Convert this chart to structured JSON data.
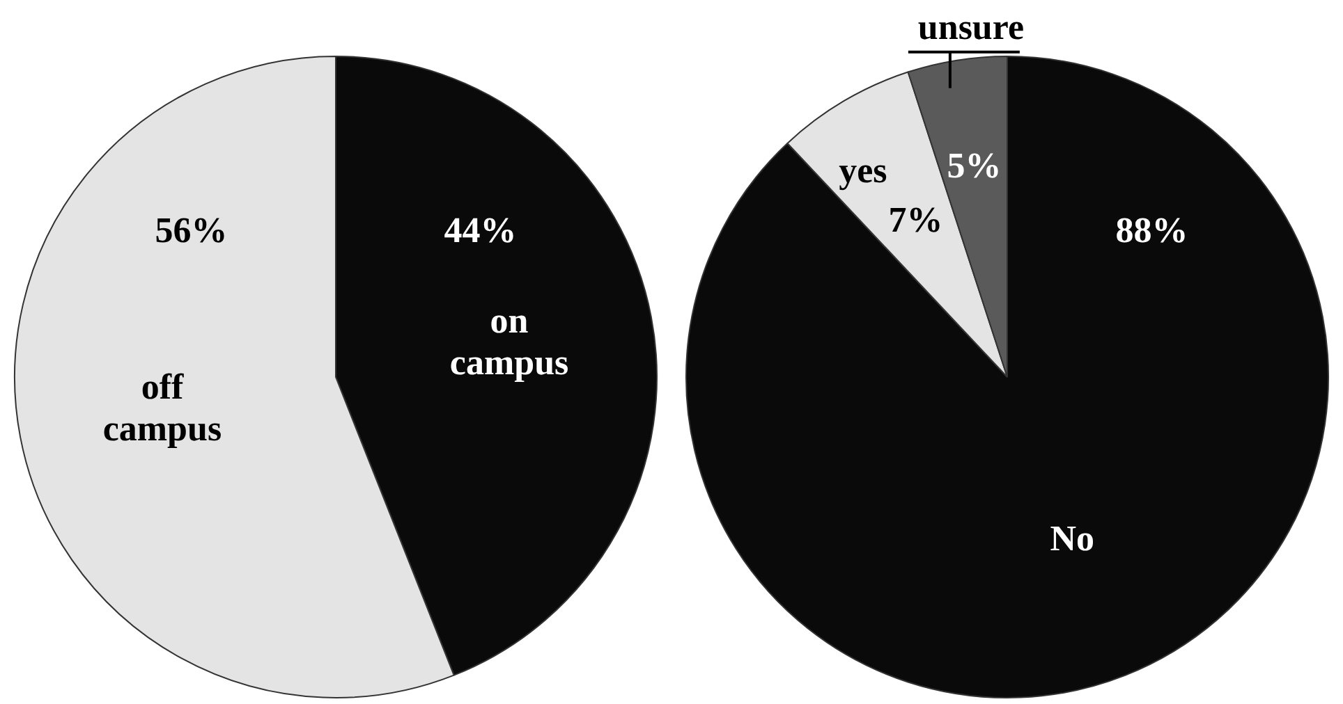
{
  "chart_data": [
    {
      "type": "pie",
      "categories": [
        "on campus",
        "off campus"
      ],
      "values": [
        44,
        56
      ],
      "value_labels": [
        "44%",
        "56%"
      ],
      "colors": [
        "#0a0a0a",
        "#e4e4e4"
      ]
    },
    {
      "type": "pie",
      "categories": [
        "No",
        "yes",
        "unsure"
      ],
      "values": [
        88,
        7,
        5
      ],
      "value_labels": [
        "88%",
        "7%",
        "5%"
      ],
      "colors": [
        "#0a0a0a",
        "#e4e4e4",
        "#5a5a5a"
      ]
    }
  ]
}
